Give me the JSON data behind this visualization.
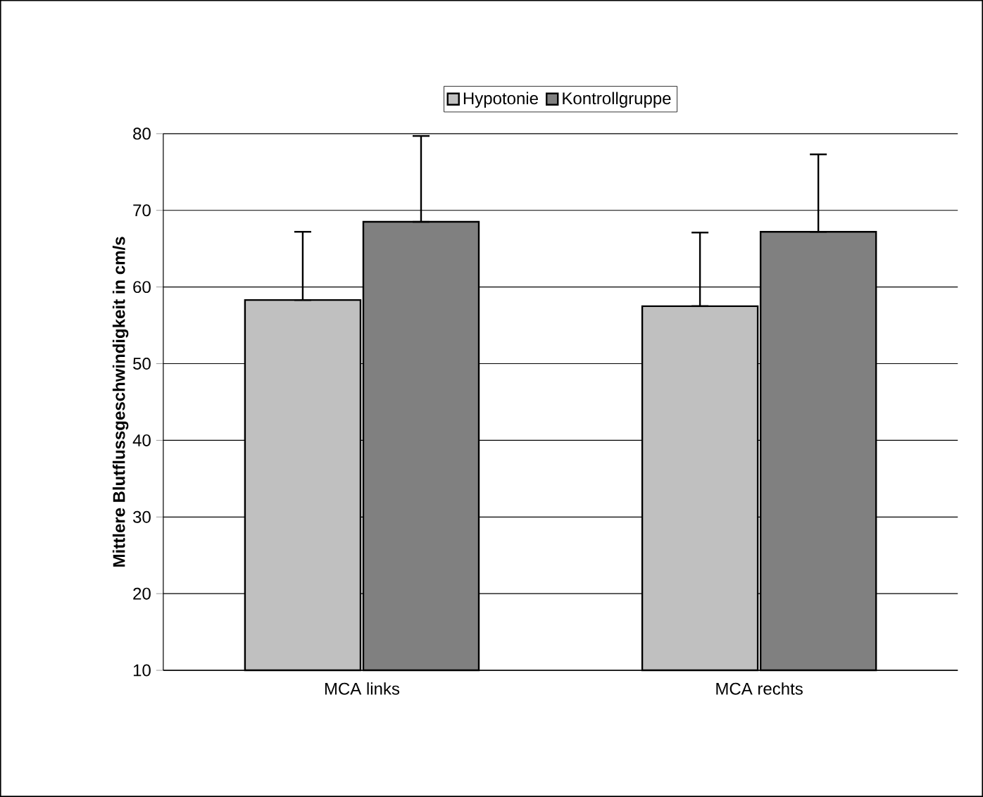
{
  "chart_data": {
    "type": "bar",
    "ylabel": "**Mittlere Blutflussgeschwindigkeit in cm/s**",
    "categories": [
      "MCA links",
      "MCA rechts"
    ],
    "series": [
      {
        "name": "Hypotonie",
        "color": "#c0c0c0",
        "values": [
          58.3,
          57.5
        ],
        "errors": [
          [
            58.3,
            67.2
          ],
          [
            57.5,
            67.1
          ]
        ]
      },
      {
        "name": "Kontrollgruppe",
        "color": "#808080",
        "values": [
          68.5,
          67.2
        ],
        "errors": [
          [
            68.5,
            79.7
          ],
          [
            67.2,
            77.3
          ]
        ]
      }
    ],
    "ylim": [
      10,
      80
    ],
    "yticks": [
      10,
      20,
      30,
      40,
      50,
      60,
      70,
      80
    ],
    "grid": "y",
    "legend": "top"
  }
}
